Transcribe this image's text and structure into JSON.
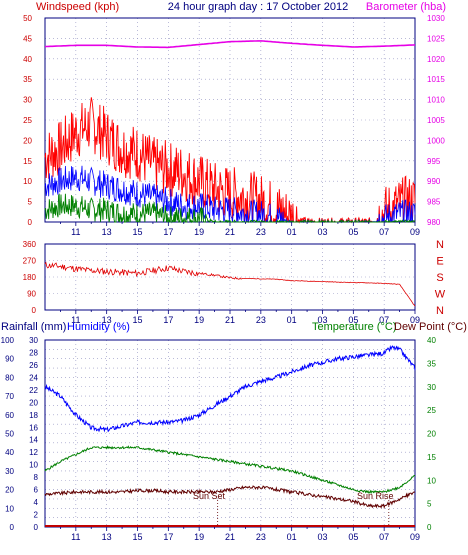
{
  "header": {
    "left_title": "Windspeed (kph)",
    "center_title": "24 hour graph day : 17 October 2012",
    "right_title": "Barometer (hba)"
  },
  "colors": {
    "wind_red": "#ff0000",
    "wind_blue": "#0000ff",
    "wind_green": "#008000",
    "barometer": "#e600e6",
    "direction": "#e00000",
    "humidity": "#0000ff",
    "temperature": "#008000",
    "dewpoint": "#600000",
    "rainfall": "#c00000",
    "grid": "#9090c0",
    "axis": "#000080"
  },
  "chart_data": [
    {
      "type": "line",
      "title": "24 hour graph day : 17 October 2012",
      "ylabel": "Windspeed (kph)",
      "y2label": "Barometer (hba)",
      "ylim": [
        0,
        50
      ],
      "y2lim": [
        980,
        1030
      ],
      "yticks": [
        0,
        5,
        10,
        15,
        20,
        25,
        30,
        35,
        40,
        45,
        50
      ],
      "y2ticks": [
        980,
        985,
        990,
        995,
        1000,
        1005,
        1010,
        1015,
        1020,
        1025,
        1030
      ],
      "xticks": [
        "11",
        "13",
        "15",
        "17",
        "19",
        "21",
        "23",
        "01",
        "03",
        "05",
        "07",
        "09"
      ],
      "grid": true,
      "series": [
        {
          "x": [
            9,
            10,
            11,
            12,
            13,
            14,
            15,
            16,
            17,
            18,
            19,
            20,
            21,
            22,
            23,
            24,
            25,
            26,
            27,
            28,
            29,
            30,
            31,
            32,
            33
          ],
          "values": [
            16,
            18,
            22,
            24,
            21,
            18,
            17,
            14,
            13,
            12,
            10,
            8,
            7,
            6,
            5,
            3,
            1,
            0,
            0,
            0,
            0,
            0,
            2,
            4,
            5
          ]
        },
        {
          "x": [
            9,
            10,
            11,
            12,
            13,
            14,
            15,
            16,
            17,
            18,
            19,
            20,
            21,
            22,
            23,
            24,
            25,
            26,
            27,
            28,
            29,
            30,
            31,
            32,
            33
          ],
          "values": [
            9,
            10,
            11,
            10,
            9,
            8,
            7,
            6,
            5,
            4,
            4,
            3,
            3,
            2,
            2,
            1,
            0,
            0,
            0,
            0,
            0,
            0,
            1,
            2,
            2
          ]
        },
        {
          "x": [
            9,
            10,
            11,
            12,
            13,
            14,
            15,
            16,
            17,
            18,
            19,
            20,
            21,
            22,
            23,
            24,
            25,
            26,
            27,
            28,
            29,
            30,
            31,
            32,
            33
          ],
          "values": [
            3,
            4,
            4,
            3,
            3,
            2,
            2,
            2,
            1,
            1,
            1,
            0,
            0,
            0,
            0,
            0,
            0,
            0,
            0,
            0,
            0,
            0,
            0,
            0,
            0
          ]
        },
        {
          "x": [
            9,
            11,
            13,
            15,
            17,
            19,
            21,
            23,
            25,
            27,
            29,
            31,
            33
          ],
          "values": [
            1023.0,
            1023.3,
            1023.3,
            1022.9,
            1022.8,
            1023.5,
            1024.2,
            1024.4,
            1023.8,
            1023.3,
            1022.9,
            1023.1,
            1023.4
          ]
        }
      ]
    },
    {
      "type": "line",
      "ylim": [
        0,
        360
      ],
      "yticks": [
        0,
        90,
        180,
        270,
        360
      ],
      "y2ticks": [
        "N",
        "W",
        "S",
        "E",
        "N"
      ],
      "xticks": [
        "11",
        "13",
        "15",
        "17",
        "19",
        "21",
        "23",
        "01",
        "03",
        "05",
        "07",
        "09"
      ],
      "grid": true,
      "series": [
        {
          "x": [
            9,
            10,
            11,
            12,
            13,
            14,
            15,
            16,
            17,
            18,
            19,
            20,
            21,
            22,
            23,
            24,
            25,
            26,
            27,
            28,
            29,
            30,
            31,
            32,
            32.5,
            33
          ],
          "values": [
            245,
            238,
            225,
            215,
            210,
            205,
            200,
            215,
            230,
            210,
            200,
            190,
            175,
            172,
            170,
            168,
            160,
            158,
            155,
            152,
            150,
            148,
            145,
            140,
            80,
            20
          ]
        }
      ]
    },
    {
      "type": "line",
      "ylabel": "Rainfall (mm)",
      "ylabel2": "Humidity (%)",
      "rlabel": "Temperature (°C)",
      "rlabel2": "Dew Point (°C)",
      "ylim_humidity": [
        0,
        100
      ],
      "ylim_rainfall": [
        0,
        30
      ],
      "ylim_temperature": [
        0,
        40
      ],
      "yticks_humidity": [
        0,
        10,
        20,
        30,
        40,
        50,
        60,
        70,
        80,
        90,
        100
      ],
      "yticks_rainfall": [
        0,
        2,
        4,
        6,
        8,
        10,
        12,
        14,
        16,
        18,
        20,
        22,
        24,
        26,
        28,
        30
      ],
      "yticks_temperature": [
        0,
        5,
        10,
        15,
        20,
        25,
        30,
        35,
        40
      ],
      "xticks": [
        "11",
        "13",
        "15",
        "17",
        "19",
        "21",
        "23",
        "01",
        "03",
        "05",
        "07",
        "09"
      ],
      "grid": true,
      "annotations": [
        "Sun Set",
        "Sun Rise"
      ],
      "series": [
        {
          "x": [
            9,
            10,
            11,
            12,
            13,
            14,
            15,
            16,
            17,
            18,
            19,
            20,
            21,
            22,
            23,
            24,
            25,
            26,
            27,
            28,
            29,
            30,
            31,
            31.5,
            32,
            33
          ],
          "values": [
            75,
            70,
            60,
            53,
            52,
            54,
            56,
            56,
            56,
            57,
            60,
            65,
            70,
            75,
            78,
            80,
            83,
            86,
            88,
            90,
            91,
            92,
            93,
            96,
            95,
            85
          ]
        },
        {
          "x": [
            9,
            10,
            11,
            12,
            13,
            14,
            15,
            16,
            17,
            18,
            19,
            20,
            21,
            22,
            23,
            24,
            25,
            26,
            27,
            28,
            29,
            30,
            31,
            32,
            33
          ],
          "values": [
            12,
            14,
            15.5,
            17,
            17,
            17,
            17,
            16.5,
            16,
            15.5,
            15,
            14.5,
            14,
            13.5,
            13,
            12.5,
            12,
            11,
            10,
            9,
            8,
            7.5,
            7.5,
            8.5,
            11
          ]
        },
        {
          "x": [
            9,
            10,
            11,
            12,
            13,
            14,
            15,
            16,
            17,
            18,
            19,
            20,
            21,
            22,
            23,
            24,
            25,
            26,
            27,
            28,
            29,
            30,
            31,
            32,
            33
          ],
          "values": [
            7,
            7.2,
            7.5,
            7.5,
            7.5,
            7.5,
            7.8,
            7.8,
            7.5,
            7.5,
            7.5,
            7.5,
            8,
            8.5,
            8.5,
            8,
            7.5,
            7,
            6.5,
            6,
            5.5,
            4.5,
            4.5,
            6,
            7.5
          ]
        },
        {
          "x": [
            9,
            33
          ],
          "values": [
            0,
            0
          ]
        }
      ]
    }
  ]
}
